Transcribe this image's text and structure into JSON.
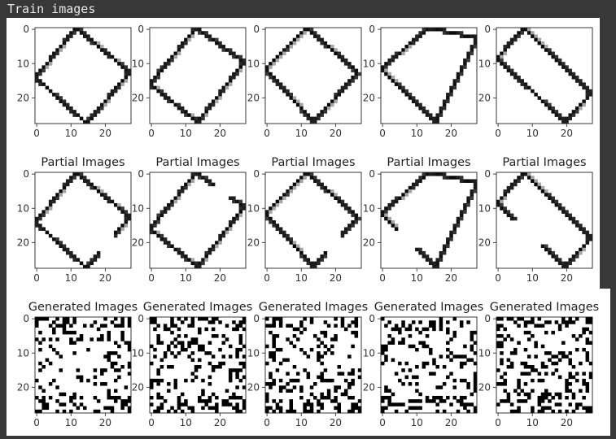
{
  "cell_output": {
    "header_text": "Train images"
  },
  "chart_data": {
    "type": "image_grid",
    "rows": [
      {
        "subplot_title": "",
        "content": "train",
        "subplots": [
          {
            "corners": [
              [
                12,
                0
              ],
              [
                27.5,
                13
              ],
              [
                15,
                28
              ],
              [
                0,
                14.5
              ]
            ]
          },
          {
            "corners": [
              [
                13.5,
                0
              ],
              [
                27.5,
                10
              ],
              [
                14,
                27.5
              ],
              [
                0,
                16.5
              ]
            ]
          },
          {
            "corners": [
              [
                12,
                0
              ],
              [
                27,
                13
              ],
              [
                14,
                27.5
              ],
              [
                0,
                12
              ]
            ]
          },
          {
            "corners": [
              [
                14,
                0
              ],
              [
                28,
                3
              ],
              [
                16,
                27.5
              ],
              [
                0,
                12
              ]
            ]
          },
          {
            "corners": [
              [
                8,
                0
              ],
              [
                27.5,
                19
              ],
              [
                20,
                27.5
              ],
              [
                0,
                9
              ]
            ]
          }
        ]
      },
      {
        "subplot_title": "Partial Images",
        "content": "partial",
        "subplots": [
          {
            "corners": [
              [
                12,
                0
              ],
              [
                27.5,
                13
              ],
              [
                15,
                28
              ],
              [
                0,
                14.5
              ]
            ],
            "gap": 1
          },
          {
            "corners": [
              [
                13.5,
                0
              ],
              [
                27.5,
                10
              ],
              [
                14,
                27.5
              ],
              [
                0,
                16.5
              ]
            ],
            "gap": 0
          },
          {
            "corners": [
              [
                12,
                0
              ],
              [
                27,
                13
              ],
              [
                14,
                27.5
              ],
              [
                0,
                12
              ]
            ],
            "gap": 1
          },
          {
            "corners": [
              [
                14,
                0
              ],
              [
                28,
                3
              ],
              [
                16,
                27.5
              ],
              [
                0,
                12
              ]
            ],
            "gap": 2
          },
          {
            "corners": [
              [
                8,
                0
              ],
              [
                27.5,
                19
              ],
              [
                20,
                27.5
              ],
              [
                0,
                9
              ]
            ],
            "gap": 2
          }
        ]
      },
      {
        "subplot_title": "Generated Images",
        "content": "generated",
        "subplots": [
          {
            "seed": 11
          },
          {
            "seed": 23
          },
          {
            "seed": 37
          },
          {
            "seed": 51
          },
          {
            "seed": 67
          }
        ]
      }
    ],
    "image_size": 28,
    "x_ticks": [
      0,
      10,
      20
    ],
    "y_ticks": [
      0,
      10,
      20
    ],
    "colormap": "gray_r"
  }
}
